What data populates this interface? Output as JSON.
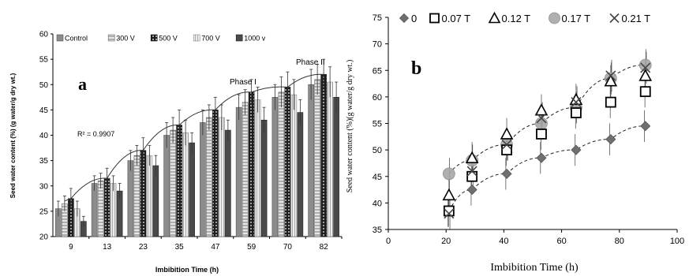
{
  "chart_data": [
    {
      "type": "bar",
      "panel_label": "a",
      "title": "",
      "xlabel": "Imbibition Time (h)",
      "ylabel": "Seed water content (%) (g water/g dry wt.)",
      "ylim": [
        20,
        60
      ],
      "ytick_step": 5,
      "grid": false,
      "legend_position": "top",
      "categories": [
        "9",
        "13",
        "23",
        "35",
        "47",
        "59",
        "70",
        "82"
      ],
      "series": [
        {
          "name": "Control",
          "color": "#8c8c8c",
          "values": [
            25.5,
            30.5,
            35,
            40,
            42.5,
            45.5,
            47.5,
            50
          ],
          "errors": [
            1.5,
            1.5,
            2,
            2.5,
            2.5,
            2.5,
            2.5,
            3
          ]
        },
        {
          "name": "300 V",
          "color": "#bcbcbc",
          "values": [
            26.5,
            31,
            36,
            41,
            43.5,
            46.5,
            48.5,
            51
          ],
          "errors": [
            1.5,
            1.5,
            2,
            2.5,
            2.5,
            2.5,
            3,
            3
          ]
        },
        {
          "name": "500 V",
          "color": "#3a3a3a",
          "values": [
            27.5,
            31.5,
            37,
            42,
            45,
            48.5,
            49.5,
            52
          ],
          "errors": [
            2,
            2,
            2.5,
            3,
            2.5,
            2.5,
            3,
            3
          ]
        },
        {
          "name": "700 V",
          "color": "#cfcfcf",
          "values": [
            25.5,
            30.5,
            36,
            40.5,
            43.5,
            47,
            48,
            50.5
          ],
          "errors": [
            1.5,
            1.5,
            2,
            2.5,
            2.5,
            2.5,
            3,
            3
          ]
        },
        {
          "name": "1000 v",
          "color": "#4a4a4a",
          "values": [
            23,
            29,
            34,
            38.5,
            41,
            43,
            44.5,
            47.5
          ],
          "errors": [
            1,
            1.5,
            2,
            2,
            2,
            2.5,
            2.5,
            3
          ]
        }
      ],
      "trend_label": "R² = 0.9907",
      "annotations": [
        "Phase I",
        "Phase II"
      ]
    },
    {
      "type": "scatter",
      "panel_label": "b",
      "title": "",
      "xlabel": "Imbibition Time (h)",
      "ylabel": "Seed water content (%)(g water/g dry wt.)",
      "xlim": [
        0,
        100
      ],
      "ylim": [
        35,
        75
      ],
      "xtick_step": 20,
      "ytick_step": 5,
      "grid": false,
      "legend_position": "top",
      "x": [
        21,
        29,
        41,
        53,
        65,
        77,
        89
      ],
      "series": [
        {
          "name": "0",
          "marker": "diamond",
          "color": "#6f6f6f",
          "values": [
            38.5,
            42.5,
            45.5,
            48.5,
            50,
            52,
            54.5
          ]
        },
        {
          "name": "0.07 T",
          "marker": "square",
          "color": "#000000",
          "values": [
            38.5,
            45,
            50,
            53,
            57,
            59,
            61
          ]
        },
        {
          "name": "0.12 T",
          "marker": "triangle",
          "color": "#000000",
          "values": [
            41.5,
            48.5,
            53,
            57.5,
            59.5,
            63,
            64
          ]
        },
        {
          "name": "0.17 T",
          "marker": "circle",
          "color": "#a8a8a8",
          "values": [
            45.5,
            48,
            51,
            55,
            58,
            63.5,
            66
          ]
        },
        {
          "name": "0.21 T",
          "marker": "cross",
          "color": "#444444",
          "values": [
            38,
            46,
            51,
            56,
            59,
            64,
            65.5
          ]
        }
      ],
      "error": 3
    }
  ]
}
